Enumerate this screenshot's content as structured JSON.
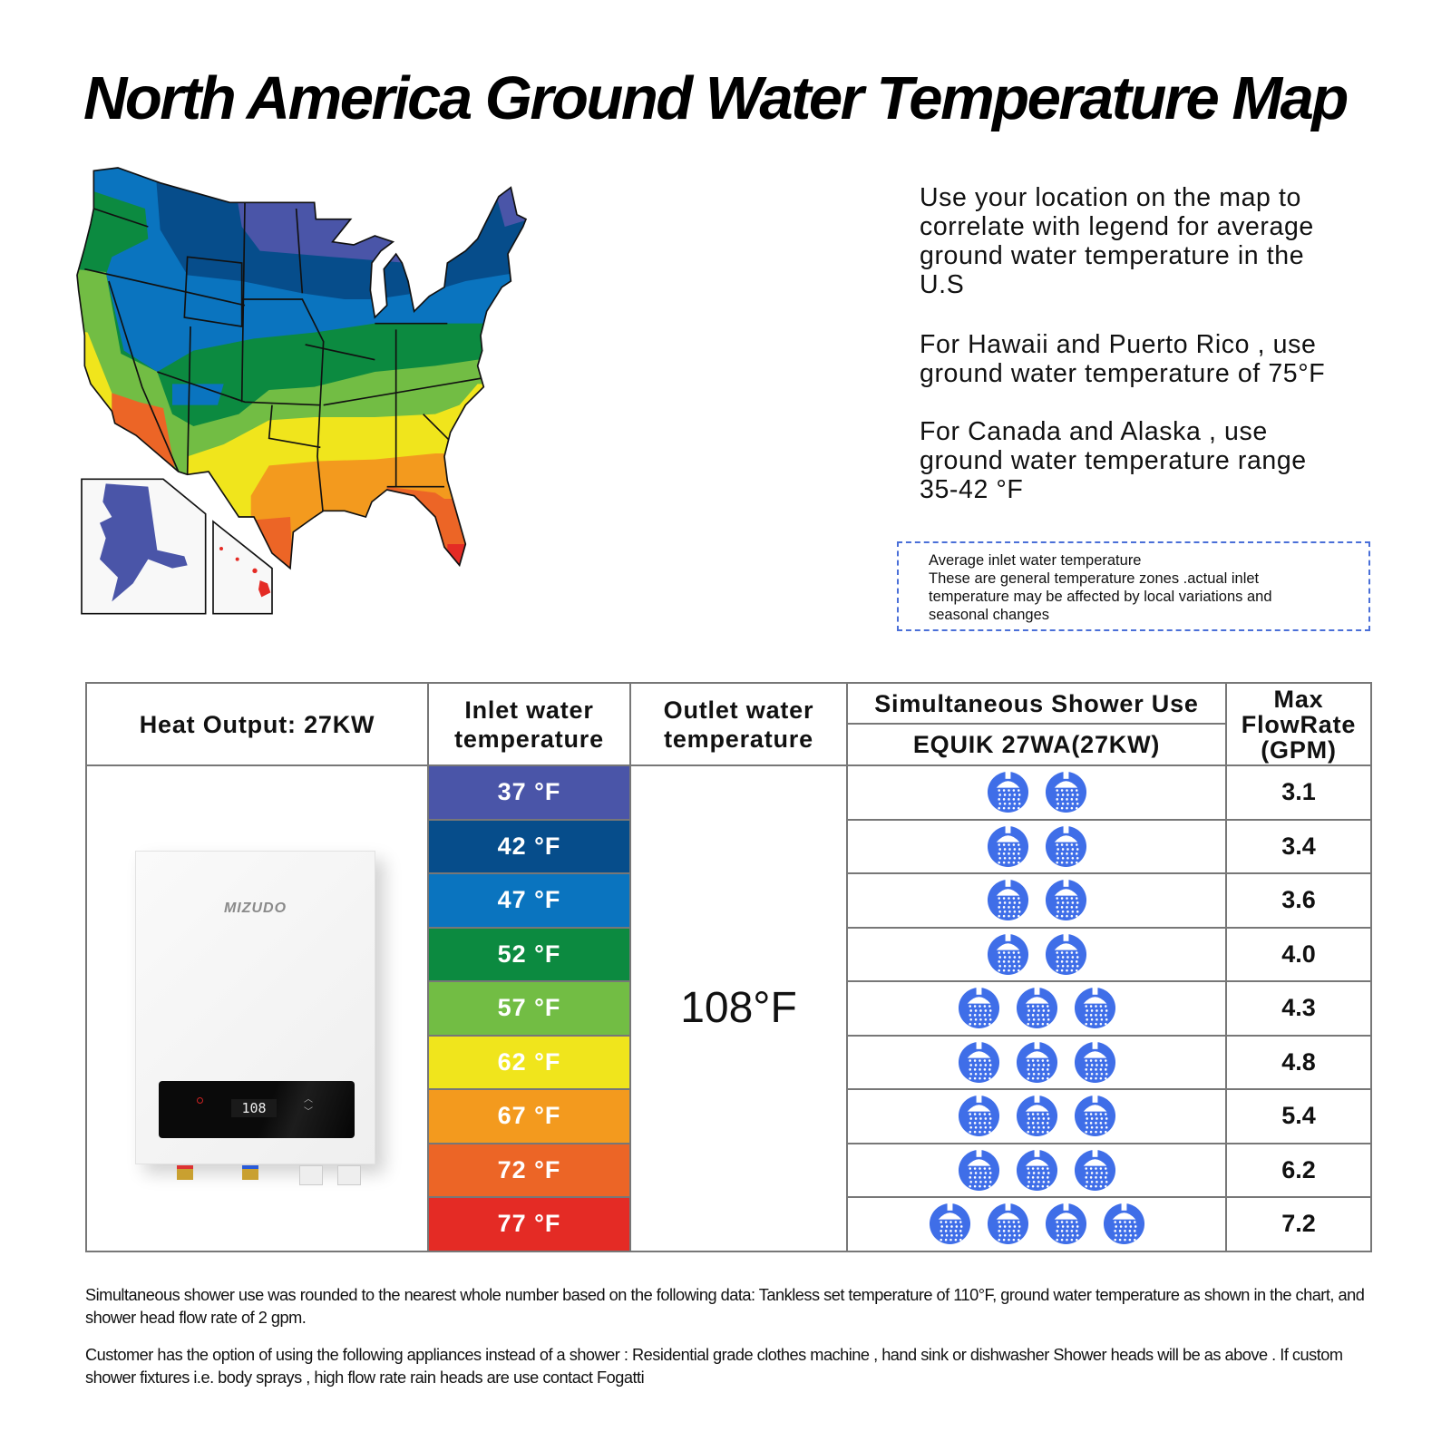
{
  "title": "North America Ground Water Temperature Map",
  "info": {
    "p1": [
      "Use your location on the map to",
      "correlate with legend for average",
      "ground water temperature in the",
      "U.S"
    ],
    "p2": [
      "For Hawaii and Puerto Rico , use",
      "ground water temperature of 75°F"
    ],
    "p3": [
      "For Canada and Alaska , use",
      "ground water temperature range",
      "35-42 °F"
    ]
  },
  "note": [
    "Average inlet water temperature",
    "These are general temperature zones .actual inlet",
    "temperature may be affected by local variations and",
    "seasonal changes"
  ],
  "table": {
    "heat_output": "Heat Output: 27KW",
    "inlet_header": "Inlet water temperature",
    "outlet_header": "Outlet water temperature",
    "shower_header": "Simultaneous Shower Use",
    "model": "EQUIK 27WA(27KW)",
    "flow_header": "Max FlowRate (GPM)",
    "outlet_value": "108°F",
    "heater": {
      "brand": "MIZUDO",
      "display": "108"
    },
    "rows": [
      {
        "inlet": "37 °F",
        "color": "#4a55a8",
        "showers": 2,
        "flow": "3.1"
      },
      {
        "inlet": "42 °F",
        "color": "#064d8b",
        "showers": 2,
        "flow": "3.4"
      },
      {
        "inlet": "47 °F",
        "color": "#0a74bf",
        "showers": 2,
        "flow": "3.6"
      },
      {
        "inlet": "52 °F",
        "color": "#0c8a40",
        "showers": 2,
        "flow": "4.0"
      },
      {
        "inlet": "57 °F",
        "color": "#72bd44",
        "showers": 3,
        "flow": "4.3"
      },
      {
        "inlet": "62 °F",
        "color": "#f0e51c",
        "showers": 3,
        "flow": "4.8"
      },
      {
        "inlet": "67 °F",
        "color": "#f39a1e",
        "showers": 3,
        "flow": "5.4"
      },
      {
        "inlet": "72 °F",
        "color": "#ec6526",
        "showers": 3,
        "flow": "6.2"
      },
      {
        "inlet": "77 °F",
        "color": "#e42b25",
        "showers": 4,
        "flow": "7.2"
      }
    ]
  },
  "icons": {
    "shower": "shower-head-icon",
    "shower_color": "#3f6ee8"
  },
  "footer": [
    "Simultaneous shower use was rounded to the nearest whole number based on the following data: Tankless set temperature of 110°F, ground water temperature as shown in the chart, and shower head flow rate of 2 gpm.",
    "Customer has the option of using the following appliances instead of a shower : Residential grade clothes machine , hand sink or dishwasher Shower heads will be as above . If custom shower fixtures i.e. body sprays , high flow rate rain heads are use contact Fogatti"
  ]
}
